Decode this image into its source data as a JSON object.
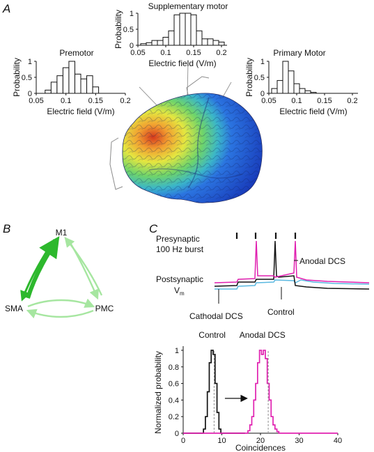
{
  "panels": {
    "A": {
      "letter": "A"
    },
    "B": {
      "letter": "B",
      "nodes": [
        "M1",
        "SMA",
        "PMC"
      ]
    },
    "C": {
      "letter": "C",
      "presynaptic_label_line1": "Presynaptic",
      "presynaptic_label_line2": "100 Hz burst",
      "postsynaptic_label_line1": "Postsynaptic",
      "postsynaptic_label_line2": "V",
      "postsynaptic_label_sub": "m",
      "anodal_label": "Anodal DCS",
      "cathodal_label": "Cathodal DCS",
      "control_label": "Control"
    }
  },
  "colors": {
    "anodal": "#e020b0",
    "control": "#111111",
    "cathodal": "#5ab8e0",
    "dashed": "#909090",
    "connectivity_green": "#2db82d",
    "connectivity_light": "#a6e6a0"
  },
  "chart_data": [
    {
      "id": "premotor",
      "type": "bar",
      "title": "Premotor",
      "xlabel": "Electric field (V/m)",
      "ylabel": "Probability",
      "xlim": [
        0.05,
        0.2
      ],
      "ylim": [
        0,
        1
      ],
      "xticks": [
        "0.05",
        "0.1",
        "0.15",
        "0.2"
      ],
      "yticks": [
        "0",
        "0.5",
        "1"
      ],
      "bin_width": 0.01,
      "x": [
        0.07,
        0.08,
        0.09,
        0.1,
        0.11,
        0.12,
        0.13,
        0.14,
        0.15
      ],
      "values": [
        0.1,
        0.35,
        0.55,
        0.8,
        1.0,
        0.6,
        0.45,
        0.55,
        0.2
      ]
    },
    {
      "id": "supplementary",
      "type": "bar",
      "title": "Supplementary motor",
      "xlabel": "Electric field (V/m)",
      "ylabel": "Probability",
      "xlim": [
        0.05,
        0.21
      ],
      "ylim": [
        0,
        1
      ],
      "xticks": [
        "0.05",
        "0.1",
        "0.15",
        "0.2"
      ],
      "yticks": [
        "0",
        "0.5",
        "1"
      ],
      "bin_width": 0.01,
      "x": [
        0.06,
        0.07,
        0.08,
        0.09,
        0.1,
        0.11,
        0.12,
        0.13,
        0.14,
        0.15,
        0.16,
        0.17,
        0.18,
        0.19,
        0.2
      ],
      "values": [
        0.05,
        0.08,
        0.15,
        0.15,
        0.25,
        0.45,
        0.95,
        1.0,
        1.0,
        0.95,
        0.45,
        0.2,
        0.2,
        0.15,
        0.1
      ]
    },
    {
      "id": "primary",
      "type": "bar",
      "title": "Primary Motor",
      "xlabel": "Electric field (V/m)",
      "ylabel": "Probability",
      "xlim": [
        0.05,
        0.21
      ],
      "ylim": [
        0,
        1
      ],
      "xticks": [
        "0.05",
        "0.1",
        "0.15",
        "0.2"
      ],
      "yticks": [
        "0",
        "0.5",
        "1"
      ],
      "bin_width": 0.01,
      "x": [
        0.06,
        0.07,
        0.08,
        0.09,
        0.1,
        0.11,
        0.12,
        0.13
      ],
      "values": [
        0.15,
        0.4,
        1.0,
        0.7,
        0.3,
        0.15,
        0.08,
        0.03
      ]
    },
    {
      "id": "coincidences",
      "type": "line",
      "xlabel": "Coincidences",
      "ylabel": "Normalized probability",
      "xlim": [
        0,
        40
      ],
      "ylim": [
        0,
        1.05
      ],
      "xticks": [
        "0",
        "10",
        "20",
        "30",
        "40"
      ],
      "yticks": [
        "0",
        "0.2",
        "0.4",
        "0.6",
        "0.8",
        "1"
      ],
      "bin_width": 0.5,
      "series": [
        {
          "name": "Control",
          "color": "#111111",
          "x": [
            5.5,
            6.0,
            6.5,
            7.0,
            7.5,
            8.0,
            8.5,
            9.0,
            9.5
          ],
          "values": [
            0.05,
            0.2,
            0.5,
            0.85,
            1.0,
            0.95,
            0.6,
            0.25,
            0.05
          ],
          "mean": 8
        },
        {
          "name": "Anodal DCS",
          "color": "#e020b0",
          "x": [
            17.0,
            17.5,
            18.0,
            18.5,
            19.0,
            19.5,
            20.0,
            20.5,
            21.0,
            21.5,
            22.0,
            22.5,
            23.0,
            23.5,
            24.0,
            24.5
          ],
          "values": [
            0.03,
            0.1,
            0.2,
            0.4,
            0.6,
            0.85,
            1.0,
            0.95,
            1.0,
            0.9,
            0.6,
            0.4,
            0.2,
            0.1,
            0.05,
            0.02
          ],
          "mean": 22
        }
      ]
    }
  ]
}
